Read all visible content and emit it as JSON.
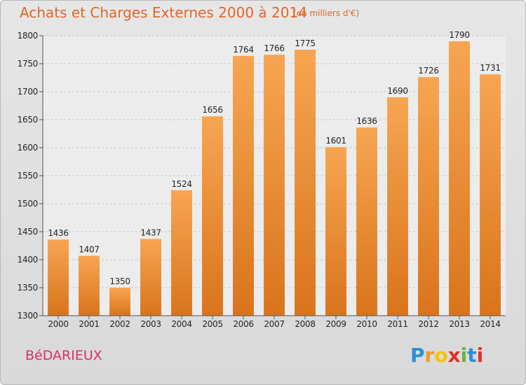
{
  "chart_data": {
    "type": "bar",
    "title": "Achats et Charges Externes 2000 à 2014",
    "subtitle": "(en milliers d'€)",
    "categories": [
      "2000",
      "2001",
      "2002",
      "2003",
      "2004",
      "2005",
      "2006",
      "2007",
      "2008",
      "2009",
      "2010",
      "2011",
      "2012",
      "2013",
      "2014"
    ],
    "values": [
      1436,
      1407,
      1350,
      1437,
      1524,
      1656,
      1764,
      1766,
      1775,
      1601,
      1636,
      1690,
      1726,
      1790,
      1731
    ],
    "ylim": [
      1300,
      1800
    ],
    "yticks": [
      1300,
      1350,
      1400,
      1450,
      1500,
      1550,
      1600,
      1650,
      1700,
      1750,
      1800
    ],
    "grid": true,
    "bar_color_top": "#f7a552",
    "bar_color_bottom": "#d9741c",
    "title_color": "#e0672a"
  },
  "footer": {
    "commune": "BéDARIEUX",
    "logo": [
      "P",
      "r",
      "o",
      "x",
      "i",
      "t",
      "i"
    ],
    "logo_colors": [
      "#2c8fd6",
      "#f19a2c",
      "#f5c400",
      "#e1312d",
      "#6cb33f",
      "#2c8fd6",
      "#e1312d"
    ]
  }
}
